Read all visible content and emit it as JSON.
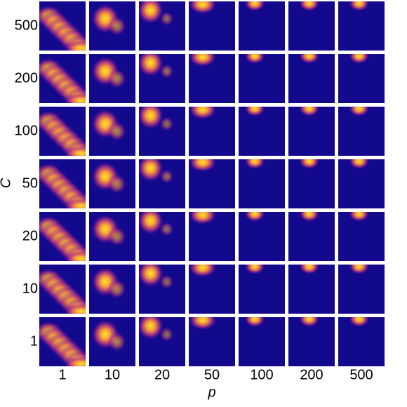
{
  "chart_data": {
    "type": "heatmap-grid",
    "x_label": "p",
    "y_label": "C",
    "x_categories": [
      "1",
      "10",
      "20",
      "50",
      "100",
      "200",
      "500"
    ],
    "y_categories": [
      "500",
      "200",
      "100",
      "50",
      "20",
      "10",
      "1"
    ]
  }
}
